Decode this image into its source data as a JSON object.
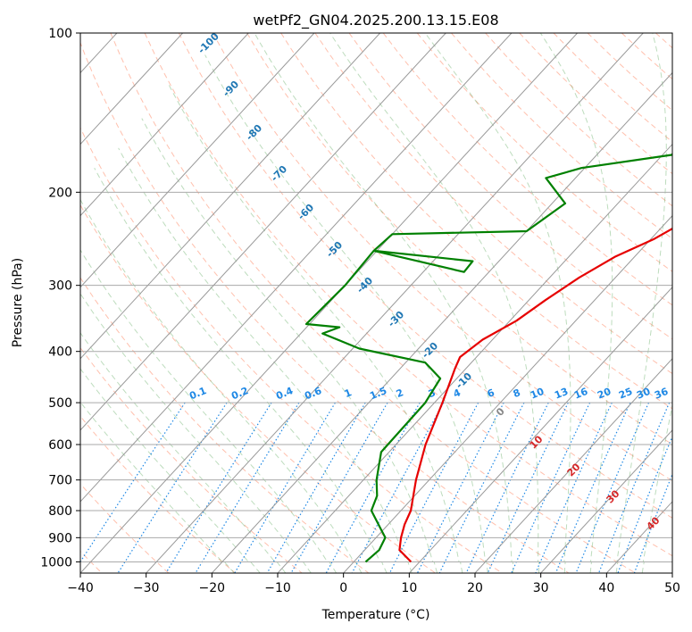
{
  "chart_data": {
    "type": "line",
    "title": "wetPf2_GN04.2025.200.13.15.E08",
    "xlabel": "Temperature (°C)",
    "ylabel": "Pressure (hPa)",
    "xlim": [
      -40,
      50
    ],
    "ylim": [
      1050,
      100
    ],
    "y_scale": "log",
    "xticks": [
      -40,
      -30,
      -20,
      -10,
      0,
      10,
      20,
      30,
      40,
      50
    ],
    "yticks": [
      100,
      200,
      300,
      400,
      500,
      600,
      700,
      800,
      900,
      1000
    ],
    "grid": true,
    "colors": {
      "temperature": "#e60000",
      "dewpoint": "#008000",
      "isotherm": "#555555",
      "dry_adiabat": "#ff8c69",
      "moist_adiabat": "#5aa85a",
      "mixing_ratio": "#1e88e5",
      "potential_temp_label": "#1f77b4",
      "moist_label": "#d62728"
    },
    "series": [
      {
        "key": "temperature",
        "x": [
          8.7,
          5.3,
          3.8,
          2.5,
          1.5,
          -2.0,
          -5.5,
          -8.8,
          -11.7,
          -12.5,
          -11.5,
          -9.0,
          -7.5,
          -5.5,
          -3.0,
          0.5,
          3.0,
          4.2,
          5.8,
          9.5,
          12.7,
          15.0,
          17.8,
          24.0,
          31.0,
          33.0,
          33.6
        ],
        "y": [
          1000,
          950,
          900,
          850,
          800,
          700,
          600,
          500,
          430,
          410,
          380,
          350,
          320,
          290,
          265,
          245,
          225,
          210,
          200,
          190,
          180,
          170,
          160,
          140,
          120,
          110,
          100
        ]
      },
      {
        "key": "dewpoint",
        "x": [
          1.8,
          2.2,
          1.4,
          -0.3,
          -4.5,
          -5.7,
          -8.0,
          -11.2,
          -11.4,
          -12.5,
          -17.0,
          -29.0,
          -36.7,
          -35.0,
          -40.5,
          -40.0,
          -40.5,
          -24.0,
          -23.8,
          -40.5,
          -40.0,
          -20.0,
          -18.0,
          -24.5,
          -20.5,
          -8.6,
          -8.6,
          -8.3,
          -6.5,
          -5.5,
          -2.5,
          2.3
        ],
        "y": [
          1000,
          950,
          900,
          870,
          800,
          750,
          700,
          620,
          500,
          450,
          420,
          395,
          370,
          360,
          355,
          300,
          258,
          270,
          283,
          258,
          240,
          237,
          210,
          188,
          180,
          170,
          150,
          130,
          120,
          115,
          107,
          100
        ]
      }
    ],
    "potential_temp_labels": [
      "-100",
      "-90",
      "-80",
      "-70",
      "-60",
      "-50",
      "-40",
      "-30",
      "-20",
      "-10",
      "0",
      "10",
      "20",
      "30",
      "40"
    ],
    "mixing_ratio_labels": [
      "0.1",
      "0.2",
      "0.4",
      "0.6",
      "1",
      "1.5",
      "2",
      "3",
      "4",
      "6",
      "8",
      "10",
      "13",
      "16",
      "20",
      "25",
      "30",
      "36"
    ]
  }
}
